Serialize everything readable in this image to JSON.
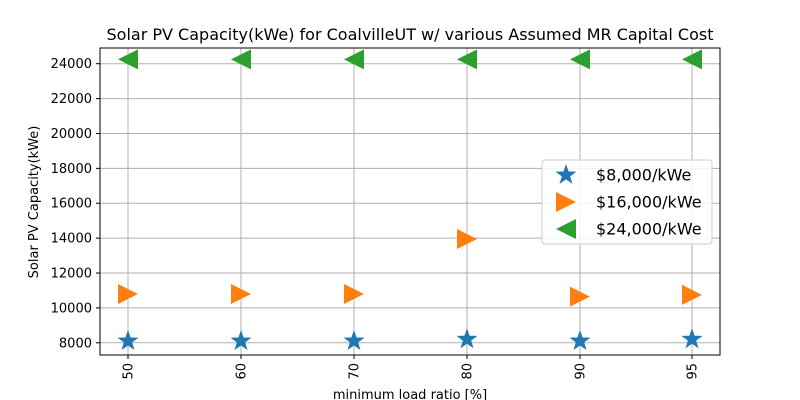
{
  "chart_data": {
    "type": "scatter",
    "title": "Solar PV Capacity(kWe) for CoalvilleUT w/ various Assumed MR Capital Cost",
    "xlabel": "minimum load ratio [%]",
    "ylabel": "Solar PV Capacity(kWe)",
    "categories": [
      "50",
      "60",
      "70",
      "80",
      "90",
      "95"
    ],
    "ylim": [
      7300,
      24900
    ],
    "yticks": [
      8000,
      10000,
      12000,
      14000,
      16000,
      18000,
      20000,
      22000,
      24000
    ],
    "grid": true,
    "legend_position": "center-right",
    "series": [
      {
        "name": "$8,000/kWe",
        "marker": "star",
        "color": "#1f77b4",
        "values": [
          8100,
          8100,
          8100,
          8200,
          8100,
          8200
        ]
      },
      {
        "name": "$16,000/kWe",
        "marker": "triangle-right",
        "color": "#ff7f0e",
        "values": [
          10800,
          10800,
          10800,
          13950,
          10650,
          10750
        ]
      },
      {
        "name": "$24,000/kWe",
        "marker": "triangle-left",
        "color": "#2ca02c",
        "values": [
          24250,
          24250,
          24250,
          24250,
          24250,
          24250
        ]
      }
    ]
  }
}
